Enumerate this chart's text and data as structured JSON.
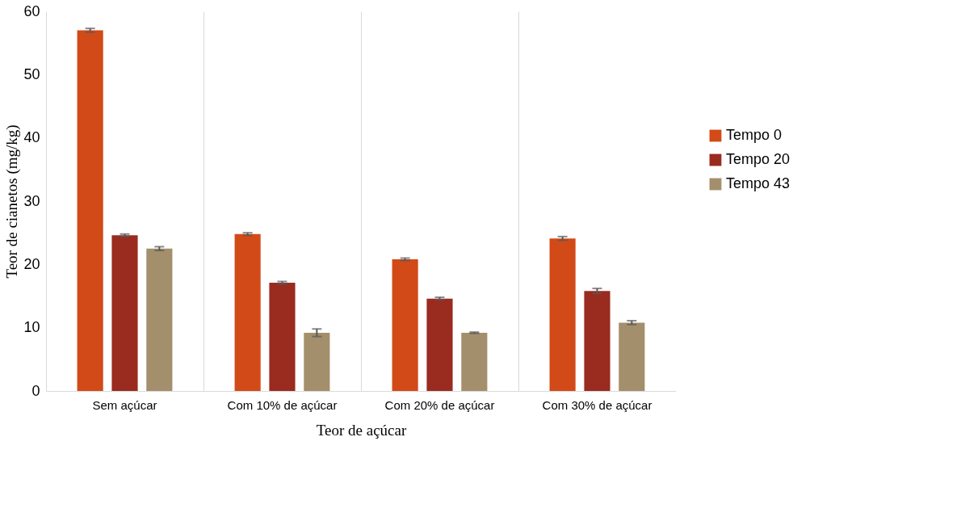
{
  "chart_data": {
    "type": "bar",
    "xlabel": "Teor de açúcar",
    "ylabel": "Teor de cianetos (mg/kg)",
    "categories": [
      "Sem açúcar",
      "Com 10% de açúcar",
      "Com 20% de açúcar",
      "Com 30% de açúcar"
    ],
    "series": [
      {
        "name": "Tempo 0",
        "color": "#d24a18",
        "values": [
          57.0,
          24.8,
          20.8,
          24.1
        ],
        "errors": [
          0.3,
          0.2,
          0.2,
          0.3
        ]
      },
      {
        "name": "Tempo 20",
        "color": "#9a2b1f",
        "values": [
          24.6,
          17.1,
          14.6,
          15.8
        ],
        "errors": [
          0.2,
          0.2,
          0.2,
          0.4
        ]
      },
      {
        "name": "Tempo 43",
        "color": "#a48f6c",
        "values": [
          22.5,
          9.2,
          9.2,
          10.8
        ],
        "errors": [
          0.3,
          0.6,
          0.1,
          0.3
        ]
      }
    ],
    "ylim": [
      0,
      60
    ],
    "yticks": [
      0,
      10,
      20,
      30,
      40,
      50,
      60
    ],
    "grid": "x",
    "legend": "right"
  }
}
